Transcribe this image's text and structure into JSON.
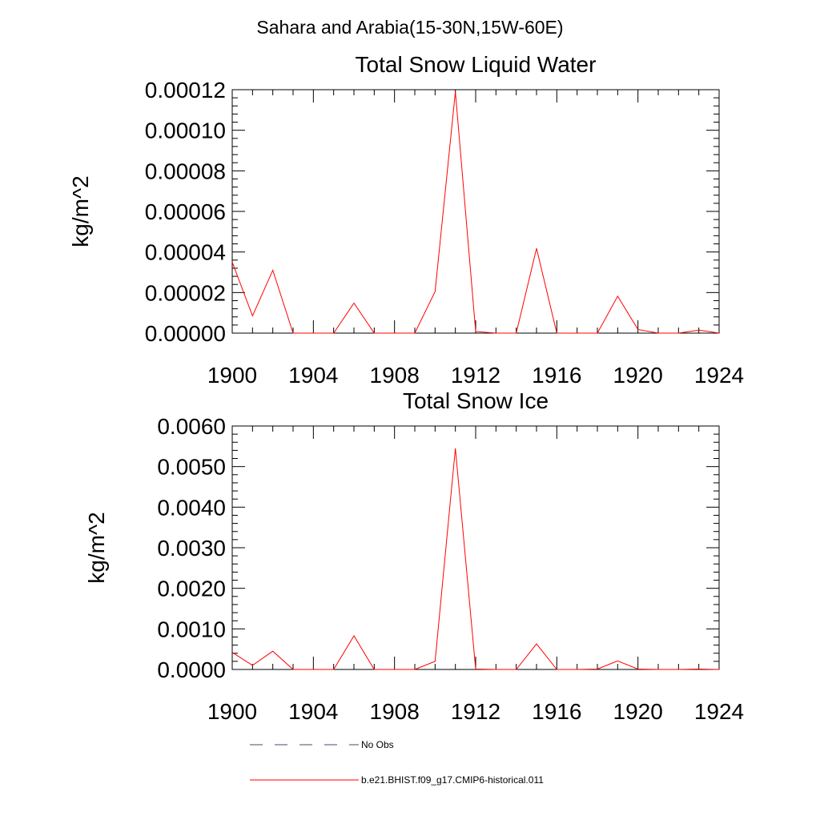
{
  "figure": {
    "title": "Sahara and Arabia(15-30N,15W-60E)"
  },
  "legend": {
    "entries": [
      {
        "label": "No Obs",
        "style": "dashed",
        "color": "#4a4a6a"
      },
      {
        "label": "b.e21.BHIST.f09_g17.CMIP6-historical.011",
        "style": "solid",
        "color": "#ff0000"
      }
    ]
  },
  "chart_data": [
    {
      "type": "line",
      "title": "Total Snow Liquid Water",
      "xlabel": "",
      "ylabel": "kg/m^2",
      "xlim": [
        1900,
        1924
      ],
      "ylim": [
        0,
        0.00012
      ],
      "xticks": [
        1900,
        1904,
        1908,
        1912,
        1916,
        1920,
        1924
      ],
      "xtick_labels": [
        "1900",
        "1904",
        "1908",
        "1912",
        "1916",
        "1920",
        "1924"
      ],
      "yticks": [
        0,
        2e-05,
        4e-05,
        6e-05,
        8e-05,
        0.0001,
        0.00012
      ],
      "ytick_labels": [
        "0.00000",
        "0.00002",
        "0.00004",
        "0.00006",
        "0.00008",
        "0.00010",
        "0.00012"
      ],
      "grid": false,
      "series": [
        {
          "name": "b.e21.BHIST.f09_g17.CMIP6-historical.011",
          "color": "#ff0000",
          "x": [
            1900,
            1901,
            1902,
            1903,
            1904,
            1905,
            1906,
            1907,
            1908,
            1909,
            1910,
            1911,
            1912,
            1913,
            1914,
            1915,
            1916,
            1917,
            1918,
            1919,
            1920,
            1921,
            1922,
            1923,
            1924
          ],
          "y": [
            3.5e-05,
            8.5e-06,
            3.1e-05,
            0,
            0,
            0,
            1.48e-05,
            0,
            0,
            0,
            2.05e-05,
            0.000119,
            8e-07,
            0,
            0,
            4.18e-05,
            0,
            0,
            0,
            1.82e-05,
            1.8e-06,
            0,
            0,
            1.5e-06,
            0
          ]
        }
      ]
    },
    {
      "type": "line",
      "title": "Total Snow Ice",
      "xlabel": "",
      "ylabel": "kg/m^2",
      "xlim": [
        1900,
        1924
      ],
      "ylim": [
        0,
        0.006
      ],
      "xticks": [
        1900,
        1904,
        1908,
        1912,
        1916,
        1920,
        1924
      ],
      "xtick_labels": [
        "1900",
        "1904",
        "1908",
        "1912",
        "1916",
        "1920",
        "1924"
      ],
      "yticks": [
        0,
        0.001,
        0.002,
        0.003,
        0.004,
        0.005,
        0.006
      ],
      "ytick_labels": [
        "0.0000",
        "0.0010",
        "0.0020",
        "0.0030",
        "0.0040",
        "0.0050",
        "0.0060"
      ],
      "grid": false,
      "series": [
        {
          "name": "b.e21.BHIST.f09_g17.CMIP6-historical.011",
          "color": "#ff0000",
          "x": [
            1900,
            1901,
            1902,
            1903,
            1904,
            1905,
            1906,
            1907,
            1908,
            1909,
            1910,
            1911,
            1912,
            1913,
            1914,
            1915,
            1916,
            1917,
            1918,
            1919,
            1920,
            1921,
            1922,
            1923,
            1924
          ],
          "y": [
            0.00042,
            0.0001,
            0.00045,
            0,
            0,
            0,
            0.00083,
            0,
            0,
            0,
            0.0002,
            0.00545,
            1e-05,
            0,
            0,
            0.00063,
            0,
            0,
            1e-05,
            0.00021,
            1e-05,
            0,
            0,
            1e-05,
            0
          ]
        }
      ]
    }
  ]
}
